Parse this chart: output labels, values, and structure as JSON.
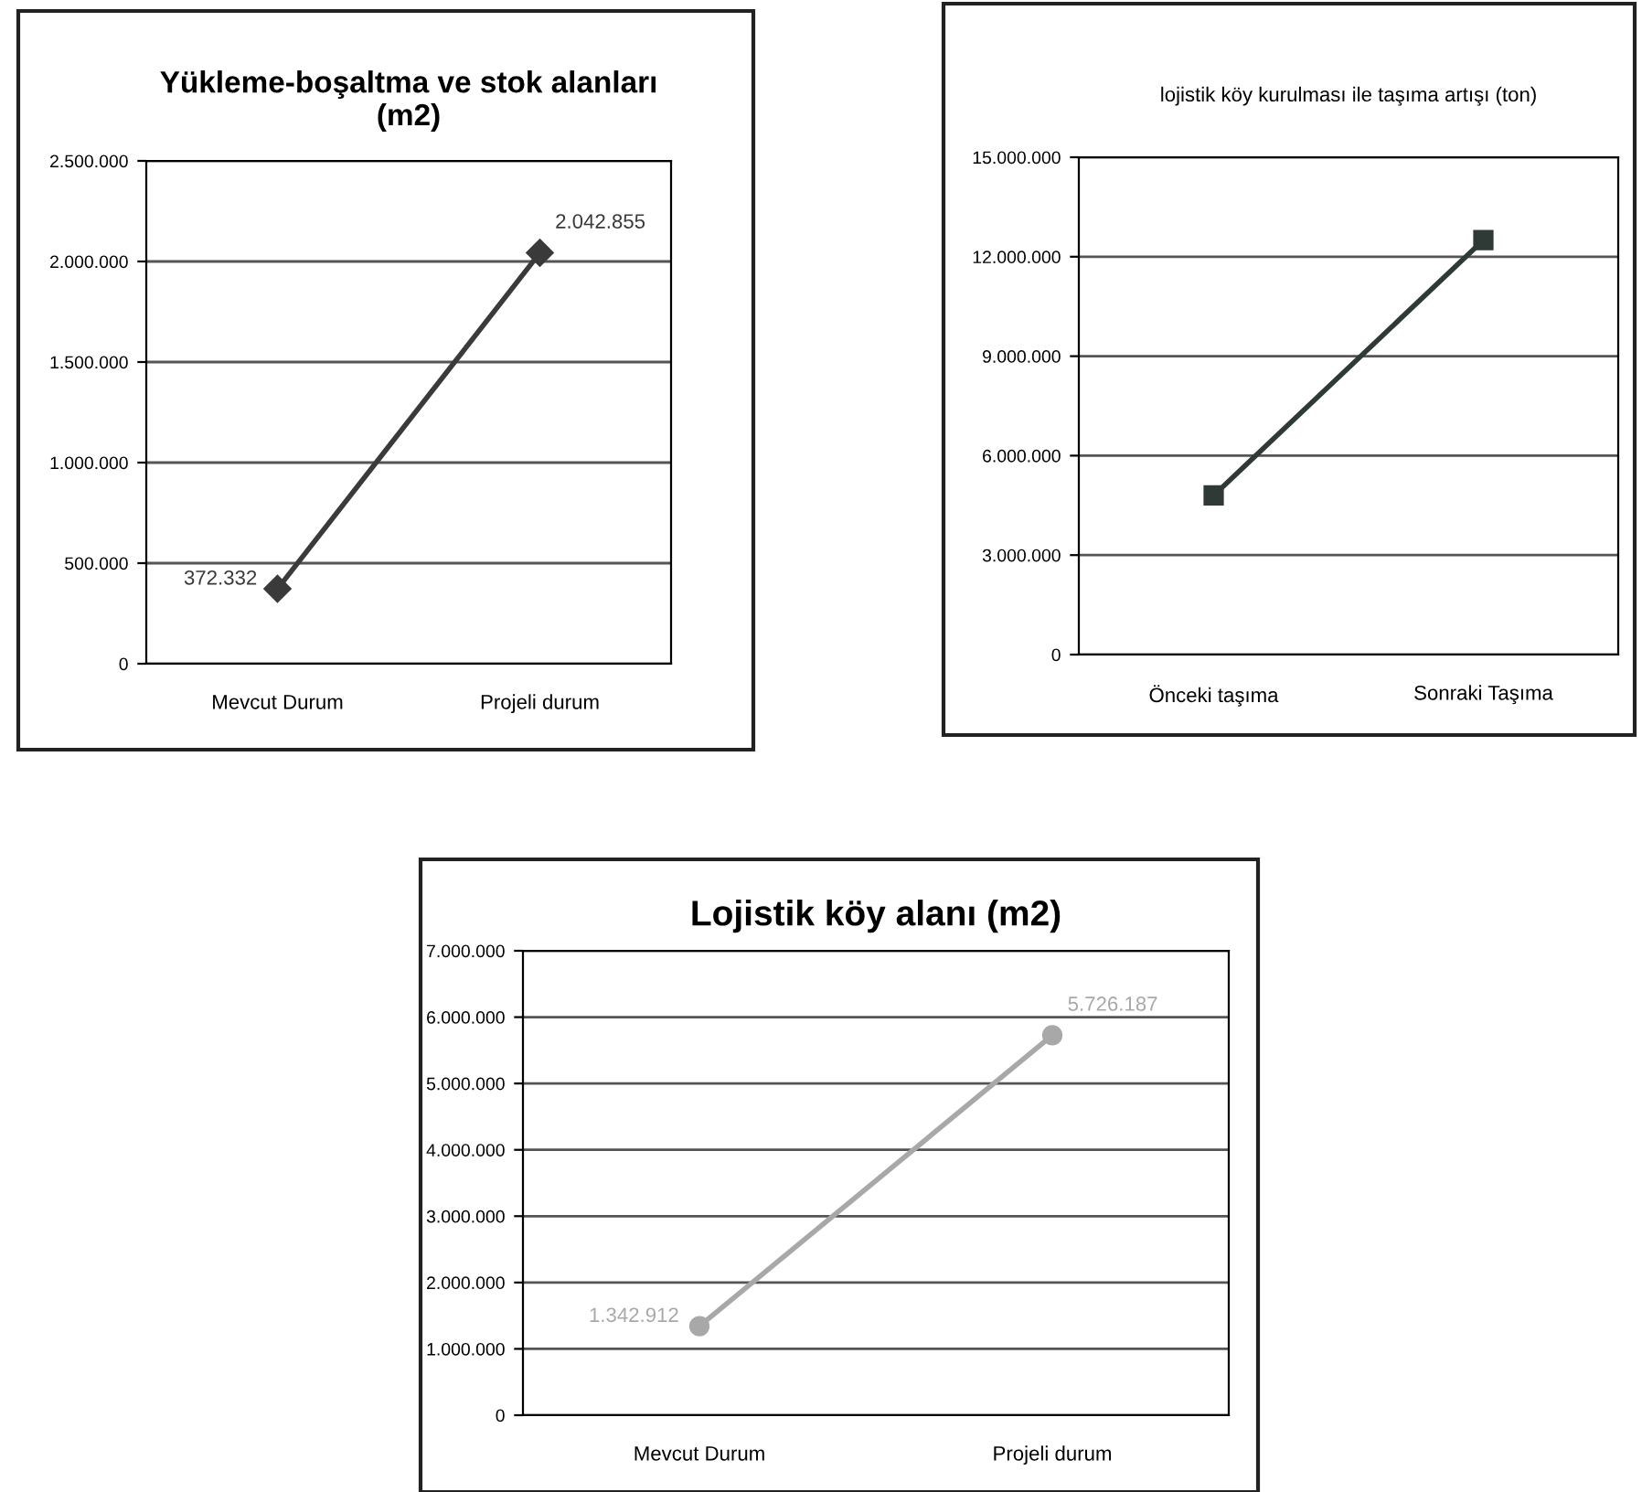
{
  "chart_data": [
    {
      "type": "line",
      "title": "Yükleme-boşaltma ve stok alanları\n(m2)",
      "categories": [
        "Mevcut Durum",
        "Projeli durum"
      ],
      "series": [
        {
          "color": "#3a3a3a",
          "values": [
            372332,
            2042855
          ],
          "value_labels": [
            "372.332",
            "2.042.855"
          ]
        }
      ],
      "ylim": [
        0,
        2500000
      ],
      "yticks": [
        {
          "value": 0,
          "label": "0"
        },
        {
          "value": 500000,
          "label": "500.000"
        },
        {
          "value": 1000000,
          "label": "1.000.000"
        },
        {
          "value": 1500000,
          "label": "1.500.000"
        },
        {
          "value": 2000000,
          "label": "2.000.000"
        },
        {
          "value": 2500000,
          "label": "2.500.000"
        }
      ],
      "grid": "y",
      "marker": "diamond",
      "line_style": "solid"
    },
    {
      "type": "line",
      "title": "lojistik köy kurulması ile taşıma artışı (ton)",
      "categories": [
        "Önceki taşıma",
        "Sonraki Taşıma"
      ],
      "series": [
        {
          "color": "#2f3a36",
          "values": [
            4800000,
            12500000
          ]
        }
      ],
      "ylim": [
        0,
        15000000
      ],
      "yticks": [
        {
          "value": 0,
          "label": "0"
        },
        {
          "value": 3000000,
          "label": "3.000.000"
        },
        {
          "value": 6000000,
          "label": "6.000.000"
        },
        {
          "value": 9000000,
          "label": "9.000.000"
        },
        {
          "value": 12000000,
          "label": "12.000.000"
        },
        {
          "value": 15000000,
          "label": "15.000.000"
        }
      ],
      "grid": "y",
      "marker": "square",
      "line_style": "solid"
    },
    {
      "type": "line",
      "title": "Lojistik köy alanı (m2)",
      "categories": [
        "Mevcut Durum",
        "Projeli durum"
      ],
      "series": [
        {
          "color": "#a8a8a8",
          "values": [
            1342912,
            5726187
          ],
          "value_labels": [
            "1.342.912",
            "5.726.187"
          ]
        }
      ],
      "ylim": [
        0,
        7000000
      ],
      "yticks": [
        {
          "value": 0,
          "label": "0"
        },
        {
          "value": 1000000,
          "label": "1.000.000"
        },
        {
          "value": 2000000,
          "label": "2.000.000"
        },
        {
          "value": 3000000,
          "label": "3.000.000"
        },
        {
          "value": 4000000,
          "label": "4.000.000"
        },
        {
          "value": 5000000,
          "label": "5.000.000"
        },
        {
          "value": 6000000,
          "label": "6.000.000"
        },
        {
          "value": 7000000,
          "label": "7.000.000"
        }
      ],
      "grid": "y",
      "marker": "circle",
      "line_style": "solid"
    }
  ]
}
